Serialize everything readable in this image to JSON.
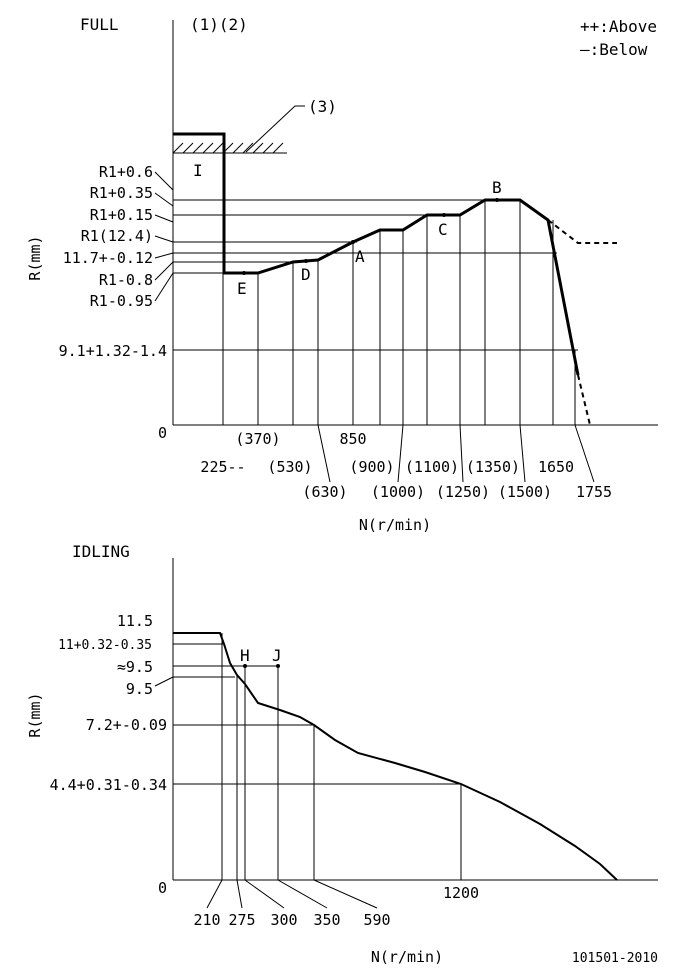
{
  "top": {
    "title": "FULL",
    "marks": "(1)(2)",
    "ref3": "(3)",
    "region_label": "I",
    "legend": {
      "above": "++:Above",
      "below": "—:Below"
    },
    "y_axis_label": "R(mm)",
    "x_axis_label": "N(r/min)",
    "y_ticks": [
      "R1+0.6",
      "R1+0.35",
      "R1+0.15",
      "R1(12.4)",
      "11.7+-0.12",
      "R1-0.8",
      "R1-0.95",
      "9.1+1.32-1.4",
      "0"
    ],
    "x_ticks": [
      "225--",
      "(370)",
      "(530)",
      "(630)",
      "850",
      "(900)",
      "(1000)",
      "(1100)",
      "(1250)",
      "(1350)",
      "(1500)",
      "1650",
      "1755"
    ],
    "points": {
      "A": "A",
      "B": "B",
      "C": "C",
      "D": "D",
      "E": "E"
    }
  },
  "bottom": {
    "title": "IDLING",
    "y_axis_label": "R(mm)",
    "x_axis_label": "N(r/min)",
    "y_ticks": [
      "11.5",
      "11+0.32-0.35",
      "≈9.5",
      "9.5",
      "7.2+-0.09",
      "4.4+0.31-0.34",
      "0"
    ],
    "x_ticks": [
      "210",
      "275",
      "300",
      "350",
      "590",
      "1200"
    ],
    "points": {
      "H": "H",
      "J": "J"
    }
  },
  "footer": {
    "doc_id": "101501-2010"
  }
}
